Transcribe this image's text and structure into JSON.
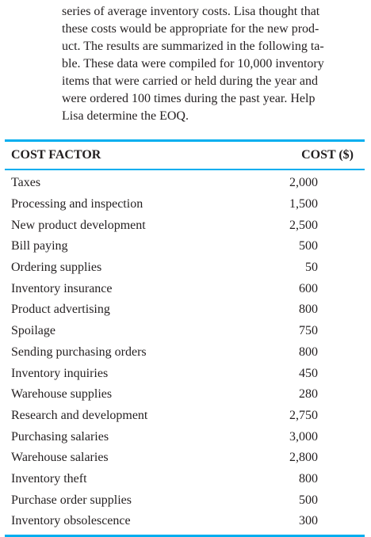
{
  "intro": {
    "lines": [
      "series of average inventory costs. Lisa thought that",
      "these costs would be appropriate for the new prod-",
      "uct. The results are summarized in the following ta-",
      "ble. These data were compiled for 10,000 inventory",
      "items that were carried or held during the year and",
      "were ordered 100 times during the past year. Help",
      "Lisa determine the EOQ."
    ]
  },
  "table": {
    "header": {
      "factor": "COST FACTOR",
      "cost": "COST ($)"
    },
    "rows": [
      {
        "factor": "Taxes",
        "cost": "2,000"
      },
      {
        "factor": "Processing and inspection",
        "cost": "1,500"
      },
      {
        "factor": "New product development",
        "cost": "2,500"
      },
      {
        "factor": "Bill paying",
        "cost": "500"
      },
      {
        "factor": "Ordering supplies",
        "cost": "50"
      },
      {
        "factor": "Inventory insurance",
        "cost": "600"
      },
      {
        "factor": "Product advertising",
        "cost": "800"
      },
      {
        "factor": "Spoilage",
        "cost": "750"
      },
      {
        "factor": "Sending purchasing orders",
        "cost": "800"
      },
      {
        "factor": "Inventory inquiries",
        "cost": "450"
      },
      {
        "factor": "Warehouse supplies",
        "cost": "280"
      },
      {
        "factor": "Research and development",
        "cost": "2,750"
      },
      {
        "factor": "Purchasing salaries",
        "cost": "3,000"
      },
      {
        "factor": "Warehouse salaries",
        "cost": "2,800"
      },
      {
        "factor": "Inventory theft",
        "cost": "800"
      },
      {
        "factor": "Purchase order supplies",
        "cost": "500"
      },
      {
        "factor": "Inventory obsolescence",
        "cost": "300"
      }
    ],
    "rule_color": "#00aeef"
  }
}
